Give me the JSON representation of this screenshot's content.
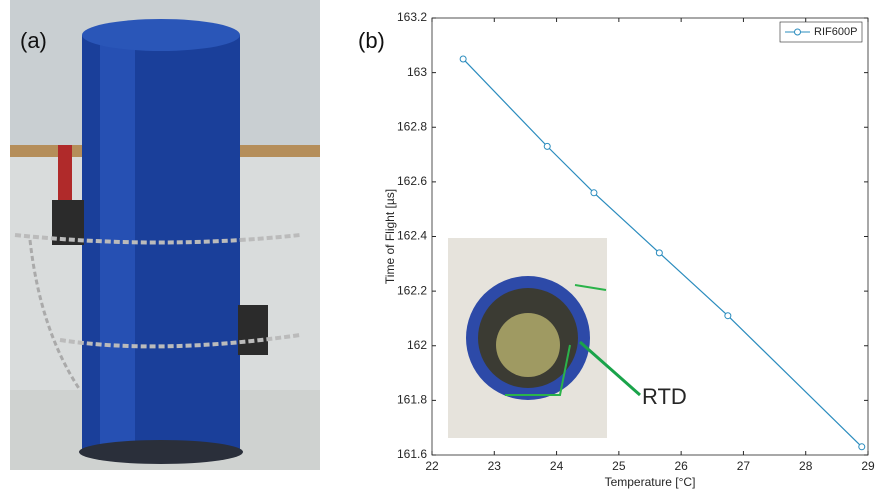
{
  "photo_label": "(a)",
  "chart_data": {
    "type": "line",
    "xlabel": "Temperature [°C]",
    "ylabel": "Time of Flight [µs]",
    "annotations": [
      "(b)",
      "RTD"
    ],
    "x": [
      22.5,
      23.85,
      24.6,
      25.65,
      26.75,
      28.9
    ],
    "series": [
      {
        "name": "RIF600P",
        "color": "#2b8cbe",
        "values": [
          163.05,
          162.73,
          162.56,
          162.34,
          162.11,
          161.63
        ]
      }
    ],
    "xlim": [
      22,
      29
    ],
    "xticks": [
      22,
      23,
      24,
      25,
      26,
      27,
      28,
      29
    ],
    "ylim": [
      161.6,
      163.2
    ],
    "yticks": [
      161.6,
      161.8,
      162,
      162.2,
      162.4,
      162.6,
      162.8,
      163,
      163.2
    ],
    "legend": "upper right",
    "grid": false
  }
}
